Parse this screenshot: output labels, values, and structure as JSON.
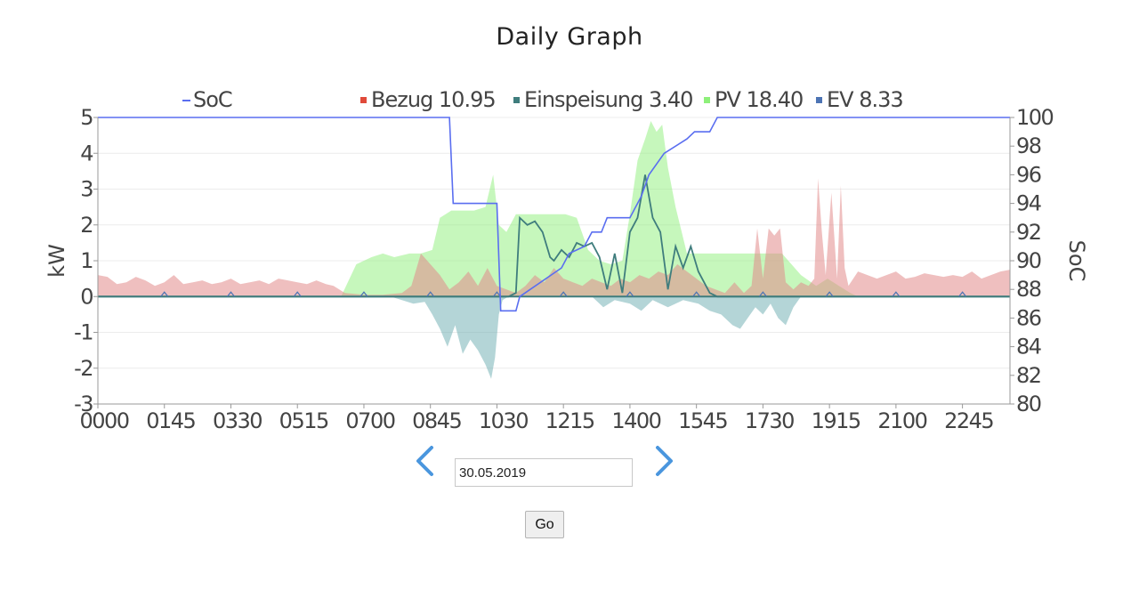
{
  "page": {
    "title": "Daily Graph",
    "date_value": "30.05.2019",
    "go_label": "Go"
  },
  "icons": {
    "prev": "chevron-left-icon",
    "next": "chevron-right-icon"
  },
  "colors": {
    "soc": "#5a6ef0",
    "bezug": "#e28a8a",
    "bezug_marker": "#e04a3a",
    "einspeisung": "#6aacb0",
    "einspeisung_line": "#3f7d7d",
    "pv": "#8ef07a",
    "ev": "#4d74b4",
    "nav": "#4a96de"
  },
  "chart_data": {
    "type": "area",
    "title": "Daily Graph",
    "xlabel": "",
    "ylabel": "kW",
    "y2label": "SoC",
    "ylim": [
      -3,
      5
    ],
    "y2lim": [
      80,
      100
    ],
    "xlim_hours": [
      0,
      24
    ],
    "grid": true,
    "legend": "top",
    "x_ticks": [
      "0000",
      "0145",
      "0330",
      "0515",
      "0700",
      "0845",
      "1030",
      "1215",
      "1400",
      "1545",
      "1730",
      "1915",
      "2100",
      "2245"
    ],
    "y_ticks": [
      "5",
      "4",
      "3",
      "2",
      "1",
      "0",
      "-1",
      "-2",
      "-3"
    ],
    "y2_ticks": [
      "100",
      "98",
      "96",
      "94",
      "92",
      "90",
      "88",
      "86",
      "84",
      "82",
      "80"
    ],
    "legend_items": [
      {
        "label": "SoC",
        "marker": "line"
      },
      {
        "label": "Bezug 10.95",
        "marker": "square"
      },
      {
        "label": "Einspeisung 3.40",
        "marker": "square"
      },
      {
        "label": "PV 18.40",
        "marker": "square"
      },
      {
        "label": "EV 8.33",
        "marker": "square"
      }
    ],
    "series": [
      {
        "name": "SoC",
        "axis": "right",
        "x": [
          0,
          9.25,
          9.35,
          10.5,
          10.6,
          11.0,
          11.1,
          12.2,
          12.4,
          12.8,
          13.0,
          13.25,
          13.4,
          14.0,
          14.3,
          14.5,
          14.9,
          15.5,
          15.7,
          16.1,
          16.3,
          24
        ],
        "y": [
          100,
          100,
          94,
          94,
          86.5,
          86.5,
          87.5,
          89.5,
          90.5,
          91,
          92,
          92,
          93,
          93,
          94.5,
          96,
          97.5,
          98.5,
          99,
          99,
          100,
          100
        ]
      },
      {
        "name": "Bezug 10.95",
        "x": [
          0,
          0.25,
          0.5,
          0.75,
          1.0,
          1.25,
          1.5,
          1.75,
          2.0,
          2.25,
          2.5,
          2.75,
          3.0,
          3.25,
          3.5,
          3.75,
          4.0,
          4.25,
          4.5,
          4.75,
          5.0,
          5.25,
          5.5,
          5.75,
          6.0,
          6.2,
          6.5,
          7.0,
          7.5,
          8.0,
          8.25,
          8.5,
          8.75,
          9.0,
          9.25,
          9.5,
          9.75,
          10.0,
          10.25,
          10.5,
          10.75,
          11.0,
          11.25,
          11.5,
          11.75,
          12.0,
          12.25,
          12.5,
          12.75,
          13.0,
          13.25,
          13.5,
          13.75,
          14.0,
          14.25,
          14.5,
          14.75,
          15.0,
          15.25,
          15.5,
          15.75,
          16.0,
          16.25,
          16.5,
          16.75,
          17.0,
          17.2,
          17.35,
          17.5,
          17.65,
          17.8,
          17.95,
          18.1,
          18.3,
          18.5,
          18.7,
          18.85,
          18.95,
          19.05,
          19.15,
          19.3,
          19.45,
          19.55,
          19.65,
          19.75,
          20.0,
          20.25,
          20.5,
          20.75,
          21.0,
          21.25,
          21.5,
          21.75,
          22.0,
          22.25,
          22.5,
          22.75,
          23.0,
          23.25,
          23.5,
          23.75,
          24.0
        ],
        "y": [
          0.6,
          0.55,
          0.35,
          0.4,
          0.55,
          0.45,
          0.3,
          0.4,
          0.6,
          0.35,
          0.4,
          0.45,
          0.35,
          0.4,
          0.5,
          0.35,
          0.4,
          0.45,
          0.35,
          0.5,
          0.45,
          0.4,
          0.35,
          0.45,
          0.35,
          0.3,
          0.1,
          0.05,
          0.05,
          0.1,
          0.3,
          1.2,
          0.9,
          0.6,
          0.2,
          0.4,
          0.7,
          0.3,
          0.8,
          0.3,
          0.2,
          0.1,
          0.3,
          0.6,
          0.4,
          0.8,
          0.5,
          0.4,
          0.3,
          0.5,
          0.4,
          0.3,
          0.5,
          0.4,
          0.6,
          0.5,
          0.7,
          0.6,
          0.9,
          0.7,
          0.5,
          0.3,
          0.2,
          0.1,
          0.4,
          0.1,
          0.3,
          1.9,
          0.5,
          1.9,
          1.7,
          1.9,
          0.4,
          0.2,
          0.4,
          0.3,
          0.5,
          3.3,
          1.8,
          0.6,
          2.9,
          0.5,
          3.1,
          0.8,
          0.3,
          0.7,
          0.6,
          0.5,
          0.6,
          0.7,
          0.5,
          0.55,
          0.65,
          0.6,
          0.55,
          0.6,
          0.55,
          0.7,
          0.5,
          0.6,
          0.7,
          0.75
        ]
      },
      {
        "name": "Einspeisung 3.40",
        "x": [
          7.7,
          8.0,
          8.3,
          8.6,
          8.8,
          9.0,
          9.2,
          9.4,
          9.6,
          9.8,
          10.0,
          10.2,
          10.35,
          10.45,
          10.55,
          10.65,
          10.8,
          11.0,
          12.0,
          13.0,
          13.3,
          13.6,
          14.0,
          14.3,
          14.6,
          15.0,
          15.4,
          15.8,
          16.1,
          16.4,
          16.7,
          16.9,
          17.1,
          17.3,
          17.5,
          17.7,
          17.9,
          18.1,
          18.3,
          18.5
        ],
        "y": [
          0,
          -0.1,
          -0.2,
          -0.15,
          -0.5,
          -0.9,
          -1.4,
          -0.8,
          -1.6,
          -1.2,
          -1.5,
          -1.9,
          -2.3,
          -1.7,
          -0.5,
          -0.1,
          0,
          0,
          0,
          0,
          -0.3,
          -0.1,
          -0.2,
          -0.4,
          -0.1,
          -0.3,
          -0.1,
          -0.2,
          -0.4,
          -0.5,
          -0.8,
          -0.9,
          -0.6,
          -0.3,
          -0.5,
          -0.2,
          -0.6,
          -0.8,
          -0.3,
          0
        ]
      },
      {
        "name": "PV 18.40",
        "x": [
          6.4,
          6.8,
          7.2,
          7.5,
          7.8,
          8.2,
          8.5,
          8.8,
          9.0,
          9.3,
          9.6,
          9.9,
          10.2,
          10.4,
          10.55,
          10.75,
          11.0,
          11.5,
          12.0,
          12.3,
          12.6,
          12.9,
          13.2,
          13.5,
          13.8,
          14.0,
          14.2,
          14.4,
          14.55,
          14.7,
          14.85,
          15.0,
          15.2,
          15.5,
          16.0,
          16.5,
          17.0,
          17.5,
          18.0,
          18.5,
          18.9,
          19.2,
          19.5,
          19.8,
          20.0
        ],
        "y": [
          0,
          0.9,
          1.1,
          1.2,
          1.1,
          1.2,
          1.2,
          1.3,
          2.2,
          2.4,
          2.4,
          2.4,
          2.5,
          3.4,
          2.0,
          1.8,
          2.3,
          2.3,
          2.3,
          2.3,
          2.2,
          1.3,
          1.0,
          0.9,
          1.0,
          2.3,
          3.8,
          4.4,
          4.9,
          4.6,
          4.8,
          3.6,
          2.5,
          1.2,
          1.2,
          1.2,
          1.2,
          1.2,
          1.2,
          0.6,
          0.3,
          0.5,
          0.3,
          0.1,
          0
        ]
      },
      {
        "name": "EV 8.33",
        "x": [
          0,
          10.8,
          11.0,
          11.1,
          11.3,
          11.5,
          11.7,
          11.9,
          12.0,
          12.2,
          12.4,
          12.6,
          12.8,
          13.0,
          13.2,
          13.4,
          13.6,
          13.8,
          14.0,
          14.2,
          14.4,
          14.6,
          14.8,
          15.0,
          15.2,
          15.4,
          15.6,
          15.8,
          16.1,
          16.3,
          24
        ],
        "y": [
          0,
          0,
          0.1,
          2.2,
          2.0,
          2.1,
          1.8,
          1.1,
          1.0,
          1.3,
          1.1,
          1.5,
          1.4,
          1.5,
          1.1,
          0.2,
          1.2,
          0.1,
          1.8,
          2.2,
          3.4,
          2.2,
          1.8,
          0.2,
          1.4,
          0.8,
          1.4,
          0.7,
          0.1,
          0,
          0
        ]
      }
    ]
  }
}
